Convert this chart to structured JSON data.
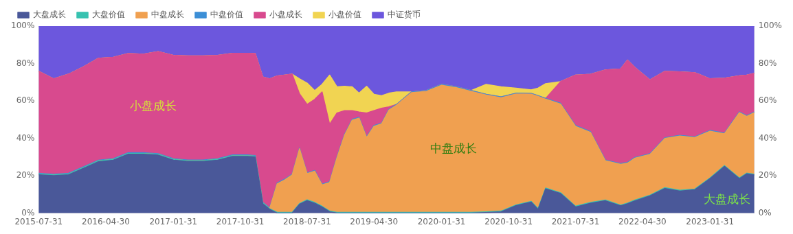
{
  "chart_data": {
    "type": "area",
    "stacked": true,
    "legend": "top left",
    "marker": "none",
    "x": [
      "2015-07-31",
      "2015-09-30",
      "2015-11-30",
      "2016-01-31",
      "2016-03-31",
      "2016-05-31",
      "2016-07-31",
      "2016-09-30",
      "2016-11-30",
      "2017-01-31",
      "2017-03-31",
      "2017-05-31",
      "2017-07-31",
      "2017-09-30",
      "2017-11-30",
      "2017-12-31",
      "2018-01-31",
      "2018-02-28",
      "2018-03-31",
      "2018-04-30",
      "2018-05-31",
      "2018-06-30",
      "2018-07-31",
      "2018-08-31",
      "2018-09-30",
      "2018-10-31",
      "2018-11-30",
      "2018-12-31",
      "2019-01-31",
      "2019-02-28",
      "2019-03-31",
      "2019-04-30",
      "2019-05-31",
      "2019-06-30",
      "2019-07-31",
      "2019-09-30",
      "2019-11-30",
      "2020-01-31",
      "2020-03-31",
      "2020-05-31",
      "2020-07-31",
      "2020-09-30",
      "2020-11-30",
      "2021-01-31",
      "2021-02-28",
      "2021-03-31",
      "2021-05-31",
      "2021-07-31",
      "2021-09-30",
      "2021-11-30",
      "2022-01-31",
      "2022-02-28",
      "2022-03-31",
      "2022-05-31",
      "2022-07-31",
      "2022-09-30",
      "2022-11-30",
      "2023-01-31",
      "2023-03-31",
      "2023-05-31",
      "2023-06-30",
      "2023-07-31"
    ],
    "series": [
      {
        "name": "大盘成长",
        "color": "#4a5899",
        "values": [
          20.5,
          20,
          20.5,
          24,
          27.5,
          28.3,
          31.5,
          31.5,
          31,
          28.3,
          27.6,
          27.6,
          28.3,
          30.3,
          30.3,
          30,
          5,
          2,
          0,
          0,
          0,
          4.7,
          6.7,
          5.3,
          3.3,
          0.7,
          0,
          0,
          0,
          0,
          0,
          0,
          0,
          0,
          0,
          0,
          0,
          0,
          0,
          0,
          0.3,
          0.7,
          4,
          5.9,
          2,
          13,
          10.5,
          3.3,
          5.3,
          6.6,
          3.9,
          5,
          6.6,
          9.2,
          13.2,
          11.8,
          12.5,
          18.4,
          25,
          18.4,
          21,
          20.4
        ]
      },
      {
        "name": "大盘价值",
        "color": "#37c2b0",
        "values": [
          0.4,
          0.4,
          0.4,
          0.4,
          0.4,
          0.4,
          0.4,
          0.4,
          0.4,
          0.4,
          0.4,
          0.4,
          0.4,
          0.4,
          0.4,
          0.4,
          0.4,
          0.4,
          0.4,
          0.4,
          0.4,
          0.4,
          0.4,
          0.4,
          0.4,
          0.4,
          0.4,
          0.4,
          0.4,
          0.4,
          0.4,
          0.4,
          0.4,
          0.4,
          0.4,
          0.4,
          0.4,
          0.4,
          0.4,
          0.4,
          0.4,
          0.4,
          0.4,
          0.4,
          0.4,
          0.4,
          0.4,
          0.4,
          0.4,
          0.4,
          0.4,
          0.4,
          0.4,
          0.4,
          0.4,
          0.4,
          0.4,
          0.4,
          0.4,
          0.4,
          0.4,
          0.4
        ]
      },
      {
        "name": "中盘成长",
        "color": "#f0a050",
        "values": [
          0,
          0,
          0,
          0,
          0,
          0,
          0,
          0,
          0,
          0,
          0,
          0,
          0,
          0,
          0,
          0,
          0,
          0,
          15.3,
          17.3,
          20,
          29.3,
          14,
          16.7,
          11.4,
          15.3,
          29.3,
          41.3,
          49.3,
          50.4,
          40,
          46,
          47.3,
          54.7,
          57.3,
          64,
          64.7,
          68,
          66.7,
          64.7,
          62.4,
          60.6,
          59.3,
          57.3,
          60,
          47.5,
          47.4,
          42.7,
          37.5,
          21,
          21.8,
          21.3,
          22.4,
          21.8,
          26.3,
          29,
          27.5,
          25,
          17,
          34.9,
          30.3,
          32.9
        ]
      },
      {
        "name": "中盘价值",
        "color": "#3c8fd6",
        "values": [
          0.4,
          0.4,
          0.4,
          0.4,
          0.4,
          0.4,
          0.4,
          0.4,
          0.4,
          0.4,
          0.4,
          0.4,
          0.4,
          0.4,
          0.4,
          0.4,
          0.4,
          0.4,
          0.4,
          0.4,
          0.4,
          0.4,
          0.4,
          0.4,
          0.4,
          0.4,
          0.4,
          0.4,
          0.4,
          0.4,
          0.4,
          0.4,
          0.4,
          0.4,
          0.4,
          0.4,
          0.4,
          0.4,
          0.4,
          0.4,
          0.4,
          0.4,
          0.4,
          0.4,
          0.4,
          0.4,
          0.4,
          0.4,
          0.4,
          0.4,
          0.4,
          0.4,
          0.4,
          0.4,
          0.4,
          0.4,
          0.4,
          0.4,
          0.4,
          0.4,
          0.4,
          0.4
        ]
      },
      {
        "name": "小盘成长",
        "color": "#d84a8e",
        "values": [
          54.5,
          51,
          53,
          53.5,
          54.5,
          54.2,
          53,
          52.7,
          54.5,
          55.2,
          55.6,
          55.6,
          55.2,
          54.3,
          54.3,
          54.5,
          67,
          69,
          57.2,
          55.7,
          53.5,
          29,
          36.6,
          38,
          49.3,
          30.7,
          23.4,
          12.7,
          4.7,
          2.9,
          12.7,
          8,
          8,
          1.3,
          0,
          0,
          0,
          0,
          0,
          0,
          0,
          0,
          0,
          0,
          0,
          0,
          11.6,
          27,
          30.6,
          48.1,
          50.6,
          54.7,
          48,
          39.4,
          35.5,
          33.9,
          34.3,
          27.6,
          29.3,
          19.3,
          21.7,
          20.6
        ]
      },
      {
        "name": "小盘价值",
        "color": "#f1d452",
        "values": [
          0,
          0,
          0,
          0,
          0,
          0,
          0,
          0,
          0,
          0,
          0,
          0,
          0,
          0,
          0,
          0,
          0,
          0,
          0,
          0,
          0,
          8,
          11.4,
          4.7,
          4,
          26.3,
          14,
          13,
          12.7,
          10,
          14.3,
          8.7,
          6.7,
          7.3,
          6.7,
          0,
          0,
          0,
          0,
          0,
          5.3,
          5.4,
          2.7,
          1.9,
          4,
          7.9,
          0,
          0,
          0,
          0,
          0,
          0,
          0,
          0,
          0,
          0,
          0,
          0,
          0,
          0,
          0,
          0
        ]
      },
      {
        "name": "中证货币",
        "color": "#6c57dd",
        "values": [
          24.2,
          28.2,
          25.7,
          21.7,
          17.2,
          16.7,
          14.7,
          15,
          13.7,
          15.7,
          16,
          16,
          15.7,
          14.6,
          14.6,
          14.7,
          27.2,
          28.2,
          26.7,
          26.2,
          25.7,
          28.2,
          30.5,
          34.5,
          31.2,
          26.2,
          32.5,
          32.2,
          32.5,
          35.9,
          32.2,
          36.5,
          37.2,
          35.9,
          35.2,
          35.2,
          34.5,
          31.2,
          32.5,
          34.5,
          31.2,
          32.5,
          33.2,
          34.1,
          33.2,
          30.8,
          29.7,
          26.2,
          25.8,
          23.5,
          22.9,
          18.2,
          22.2,
          28.8,
          24.2,
          24.5,
          24.9,
          28.2,
          27.9,
          26.6,
          26.2,
          25.3
        ]
      }
    ],
    "xlim": [
      "2015-07-31",
      "2023-07-31"
    ],
    "xticks": [
      "2015-07-31",
      "2016-04-30",
      "2017-01-31",
      "2017-10-31",
      "2018-07-31",
      "2019-04-30",
      "2020-01-31",
      "2020-10-31",
      "2021-07-31",
      "2022-04-30",
      "2023-01-31"
    ],
    "ylim": [
      0,
      100
    ],
    "yticks": [
      {
        "value": 0,
        "label": "0%"
      },
      {
        "value": 20,
        "label": "20%"
      },
      {
        "value": 40,
        "label": "40%"
      },
      {
        "value": 60,
        "label": "60%"
      },
      {
        "value": 80,
        "label": "80%"
      },
      {
        "value": 100,
        "label": "100%"
      }
    ],
    "y2lim": [
      0,
      100
    ],
    "y2ticks": [
      {
        "value": 0,
        "label": "0%"
      },
      {
        "value": 20,
        "label": "20%"
      },
      {
        "value": 40,
        "label": "40%"
      },
      {
        "value": 60,
        "label": "60%"
      },
      {
        "value": 80,
        "label": "80%"
      },
      {
        "value": 100,
        "label": "100%"
      }
    ],
    "annotations": [
      "小盘成长",
      "中盘成长",
      "大盘成长"
    ]
  }
}
